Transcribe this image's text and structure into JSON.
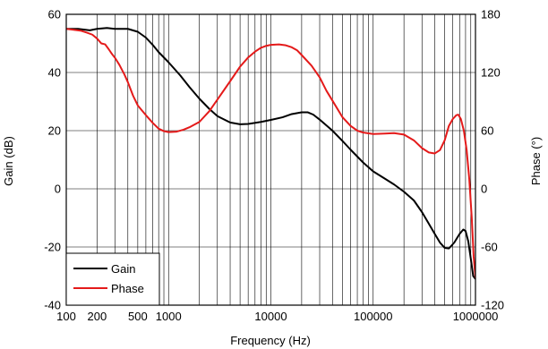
{
  "chart_data": {
    "type": "line",
    "xlabel": "Frequency (Hz)",
    "ylabel_left": "Gain (dB)",
    "ylabel_right": "Phase (°)",
    "x_scale": "log",
    "xlim": [
      100,
      1000000
    ],
    "ylim_left": [
      -40,
      60
    ],
    "ylim_right": [
      -120,
      180
    ],
    "x_ticks": [
      {
        "value": 100,
        "label": "100"
      },
      {
        "value": 200,
        "label": "200"
      },
      {
        "value": 500,
        "label": "500"
      },
      {
        "value": 1000,
        "label": "1000"
      },
      {
        "value": 10000,
        "label": "10000"
      },
      {
        "value": 100000,
        "label": "100000"
      },
      {
        "value": 1000000,
        "label": "1000000"
      }
    ],
    "y_ticks_left": [
      {
        "value": 60,
        "label": "60"
      },
      {
        "value": 40,
        "label": "40"
      },
      {
        "value": 20,
        "label": "20"
      },
      {
        "value": 0,
        "label": "0"
      },
      {
        "value": -20,
        "label": "-20"
      },
      {
        "value": -40,
        "label": "-40"
      }
    ],
    "y_ticks_right": [
      {
        "value": 180,
        "label": "180"
      },
      {
        "value": 120,
        "label": "120"
      },
      {
        "value": 60,
        "label": "60"
      },
      {
        "value": 0,
        "label": "0"
      },
      {
        "value": -60,
        "label": "-60"
      },
      {
        "value": -120,
        "label": "-120"
      }
    ],
    "grid": true,
    "legend_position": "bottom-left",
    "series": [
      {
        "name": "Gain",
        "axis": "left",
        "color": "#000000",
        "points": [
          [
            100,
            55
          ],
          [
            130,
            55
          ],
          [
            170,
            54.5
          ],
          [
            200,
            55
          ],
          [
            250,
            55.3
          ],
          [
            300,
            55
          ],
          [
            350,
            55
          ],
          [
            400,
            55
          ],
          [
            500,
            54
          ],
          [
            600,
            52
          ],
          [
            700,
            49.5
          ],
          [
            800,
            47
          ],
          [
            1000,
            43.5
          ],
          [
            1300,
            39
          ],
          [
            1600,
            35
          ],
          [
            2000,
            31
          ],
          [
            2500,
            27.5
          ],
          [
            3000,
            25
          ],
          [
            4000,
            22.8
          ],
          [
            5000,
            22.2
          ],
          [
            6000,
            22.3
          ],
          [
            8000,
            23
          ],
          [
            10000,
            23.7
          ],
          [
            13000,
            24.6
          ],
          [
            16000,
            25.7
          ],
          [
            20000,
            26.3
          ],
          [
            23000,
            26.3
          ],
          [
            26000,
            25.5
          ],
          [
            30000,
            23.8
          ],
          [
            40000,
            20
          ],
          [
            50000,
            16.5
          ],
          [
            60000,
            13.5
          ],
          [
            80000,
            9
          ],
          [
            100000,
            6
          ],
          [
            130000,
            3.5
          ],
          [
            160000,
            1.5
          ],
          [
            200000,
            -1
          ],
          [
            250000,
            -4
          ],
          [
            300000,
            -8
          ],
          [
            350000,
            -12
          ],
          [
            400000,
            -15.5
          ],
          [
            450000,
            -18.5
          ],
          [
            500000,
            -20.3
          ],
          [
            550000,
            -20.5
          ],
          [
            620000,
            -18.5
          ],
          [
            700000,
            -15.5
          ],
          [
            760000,
            -14
          ],
          [
            800000,
            -14.5
          ],
          [
            850000,
            -18
          ],
          [
            900000,
            -24
          ],
          [
            950000,
            -30
          ],
          [
            1000000,
            -31
          ]
        ]
      },
      {
        "name": "Phase",
        "axis": "right",
        "color": "#e41a1a",
        "points": [
          [
            100,
            165
          ],
          [
            120,
            164
          ],
          [
            140,
            163
          ],
          [
            160,
            161
          ],
          [
            180,
            159
          ],
          [
            200,
            155
          ],
          [
            220,
            150
          ],
          [
            240,
            149
          ],
          [
            260,
            144
          ],
          [
            280,
            139
          ],
          [
            300,
            135
          ],
          [
            330,
            128
          ],
          [
            370,
            118
          ],
          [
            400,
            110
          ],
          [
            450,
            96
          ],
          [
            500,
            86
          ],
          [
            600,
            76
          ],
          [
            700,
            68
          ],
          [
            800,
            62
          ],
          [
            900,
            59.5
          ],
          [
            1000,
            58.5
          ],
          [
            1200,
            59
          ],
          [
            1400,
            61
          ],
          [
            1600,
            63.5
          ],
          [
            2000,
            69
          ],
          [
            2500,
            80
          ],
          [
            3000,
            92
          ],
          [
            4000,
            111
          ],
          [
            5000,
            126
          ],
          [
            6000,
            135.5
          ],
          [
            7000,
            141.5
          ],
          [
            8000,
            145.5
          ],
          [
            9000,
            147.5
          ],
          [
            10000,
            148.5
          ],
          [
            12000,
            149
          ],
          [
            14000,
            148
          ],
          [
            16000,
            146
          ],
          [
            18000,
            143
          ],
          [
            20000,
            138
          ],
          [
            25000,
            127
          ],
          [
            30000,
            115
          ],
          [
            35000,
            101
          ],
          [
            40000,
            91
          ],
          [
            50000,
            74
          ],
          [
            60000,
            65
          ],
          [
            70000,
            60
          ],
          [
            80000,
            58
          ],
          [
            100000,
            56.5
          ],
          [
            130000,
            57
          ],
          [
            160000,
            57.5
          ],
          [
            200000,
            56
          ],
          [
            250000,
            50
          ],
          [
            300000,
            42
          ],
          [
            350000,
            37.5
          ],
          [
            400000,
            36.5
          ],
          [
            450000,
            40
          ],
          [
            500000,
            50
          ],
          [
            550000,
            65
          ],
          [
            600000,
            72
          ],
          [
            650000,
            76
          ],
          [
            680000,
            76.5
          ],
          [
            720000,
            72
          ],
          [
            770000,
            60
          ],
          [
            820000,
            40
          ],
          [
            870000,
            10
          ],
          [
            920000,
            -30
          ],
          [
            960000,
            -70
          ],
          [
            1000000,
            -92
          ]
        ]
      }
    ]
  }
}
